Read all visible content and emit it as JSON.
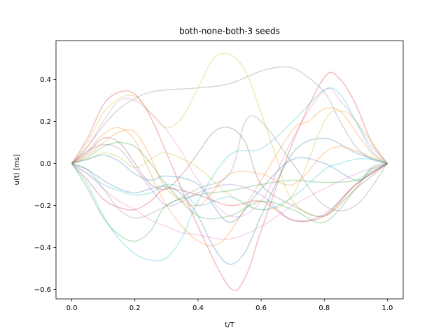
{
  "chart_data": {
    "type": "line",
    "title": "both-none-both-3 seeds",
    "xlabel": "t/T",
    "ylabel": "u(t) [ms]",
    "xlim": [
      -0.05,
      1.05
    ],
    "ylim": [
      -0.645,
      0.585
    ],
    "xticks": [
      0.0,
      0.2,
      0.4,
      0.6,
      0.8,
      1.0
    ],
    "xtick_labels": [
      "0.0",
      "0.2",
      "0.4",
      "0.6",
      "0.8",
      "1.0"
    ],
    "yticks": [
      -0.6,
      -0.4,
      -0.2,
      0.0,
      0.2,
      0.4
    ],
    "ytick_labels": [
      "−0.6",
      "−0.4",
      "−0.2",
      "0.0",
      "0.2",
      "0.4"
    ],
    "grid": false,
    "legend": "none",
    "line_opacity": 0.3,
    "series": [
      {
        "color": "#d62728",
        "x": [
          0,
          0.05,
          0.1,
          0.15,
          0.2,
          0.25,
          0.3,
          0.4,
          0.5,
          0.55,
          0.6,
          0.7,
          0.8,
          0.85,
          0.9,
          0.95,
          1.0
        ],
        "values": [
          0,
          0.12,
          0.28,
          0.34,
          0.33,
          0.22,
          0.05,
          -0.3,
          -0.59,
          -0.54,
          -0.32,
          0.1,
          0.41,
          0.4,
          0.28,
          0.1,
          0
        ]
      },
      {
        "color": "#bcbd22",
        "x": [
          0,
          0.05,
          0.1,
          0.15,
          0.2,
          0.25,
          0.3,
          0.35,
          0.4,
          0.45,
          0.5,
          0.55,
          0.6,
          0.65,
          0.7,
          0.8,
          0.9,
          1.0
        ],
        "values": [
          0,
          0.1,
          0.24,
          0.31,
          0.32,
          0.24,
          0.17,
          0.22,
          0.36,
          0.5,
          0.52,
          0.44,
          0.24,
          0.02,
          -0.18,
          -0.25,
          -0.1,
          0
        ]
      },
      {
        "color": "#7f7f7f",
        "x": [
          0,
          0.05,
          0.1,
          0.15,
          0.2,
          0.25,
          0.3,
          0.4,
          0.5,
          0.6,
          0.67,
          0.72,
          0.8,
          0.85,
          0.9,
          0.95,
          1.0
        ],
        "values": [
          0,
          0.08,
          0.18,
          0.26,
          0.31,
          0.34,
          0.35,
          0.36,
          0.38,
          0.44,
          0.46,
          0.44,
          0.34,
          0.2,
          0.08,
          0.02,
          0
        ]
      },
      {
        "color": "#e377c2",
        "x": [
          0,
          0.05,
          0.1,
          0.15,
          0.2,
          0.25,
          0.3,
          0.35,
          0.4,
          0.5,
          0.6,
          0.7,
          0.8,
          0.85,
          0.9,
          0.95,
          1.0
        ],
        "values": [
          0,
          0.08,
          0.2,
          0.3,
          0.3,
          0.24,
          0.16,
          0.05,
          -0.08,
          -0.25,
          -0.18,
          0.12,
          0.35,
          0.3,
          0.2,
          0.08,
          0
        ]
      },
      {
        "color": "#17becf",
        "x": [
          0,
          0.05,
          0.1,
          0.15,
          0.2,
          0.25,
          0.3,
          0.35,
          0.4,
          0.5,
          0.6,
          0.7,
          0.8,
          0.85,
          0.9,
          0.95,
          1.0
        ],
        "values": [
          0,
          -0.1,
          -0.25,
          -0.36,
          -0.43,
          -0.46,
          -0.45,
          -0.35,
          -0.18,
          0.04,
          0.07,
          0.2,
          0.35,
          0.33,
          0.2,
          0.06,
          0
        ]
      },
      {
        "color": "#ff7f0e",
        "x": [
          0,
          0.05,
          0.1,
          0.15,
          0.2,
          0.25,
          0.3,
          0.35,
          0.4,
          0.45,
          0.5,
          0.6,
          0.7,
          0.75,
          0.8,
          0.85,
          0.9,
          0.95,
          1.0
        ],
        "values": [
          0,
          0.06,
          0.14,
          0.17,
          0.11,
          -0.05,
          -0.2,
          -0.3,
          -0.37,
          -0.39,
          -0.33,
          -0.08,
          0.16,
          0.2,
          0.26,
          0.25,
          0.15,
          0.05,
          0
        ]
      },
      {
        "color": "#1f77b4",
        "x": [
          0,
          0.05,
          0.1,
          0.15,
          0.2,
          0.25,
          0.3,
          0.35,
          0.4,
          0.45,
          0.5,
          0.55,
          0.6,
          0.7,
          0.8,
          0.9,
          1.0
        ],
        "values": [
          0,
          -0.03,
          -0.08,
          -0.12,
          -0.14,
          -0.12,
          -0.11,
          -0.15,
          -0.25,
          -0.4,
          -0.48,
          -0.42,
          -0.25,
          0.05,
          0.12,
          0.05,
          0
        ]
      },
      {
        "color": "#2ca02c",
        "x": [
          0,
          0.05,
          0.1,
          0.15,
          0.2,
          0.25,
          0.3,
          0.4,
          0.5,
          0.6,
          0.7,
          0.8,
          0.9,
          0.95,
          1.0
        ],
        "values": [
          0,
          -0.12,
          -0.26,
          -0.34,
          -0.37,
          -0.32,
          -0.2,
          -0.15,
          -0.13,
          -0.1,
          -0.08,
          -0.09,
          -0.08,
          -0.03,
          0
        ]
      },
      {
        "color": "#9467bd",
        "x": [
          0,
          0.05,
          0.1,
          0.15,
          0.2,
          0.25,
          0.3,
          0.35,
          0.4,
          0.5,
          0.6,
          0.7,
          0.8,
          0.9,
          1.0
        ],
        "values": [
          0,
          0.06,
          0.09,
          0.07,
          -0.02,
          -0.12,
          -0.2,
          -0.18,
          -0.14,
          -0.1,
          -0.15,
          -0.27,
          -0.24,
          -0.1,
          0
        ]
      },
      {
        "color": "#8c564b",
        "x": [
          0,
          0.05,
          0.1,
          0.15,
          0.2,
          0.25,
          0.3,
          0.35,
          0.4,
          0.45,
          0.5,
          0.55,
          0.6,
          0.7,
          0.8,
          0.9,
          1.0
        ],
        "values": [
          0,
          0.05,
          0.12,
          0.1,
          0.0,
          -0.1,
          -0.12,
          -0.05,
          0.05,
          0.15,
          0.17,
          0.1,
          -0.1,
          -0.2,
          -0.25,
          -0.12,
          0
        ]
      },
      {
        "color": "#7f7f7f",
        "x": [
          0,
          0.05,
          0.1,
          0.15,
          0.2,
          0.25,
          0.3,
          0.4,
          0.5,
          0.55,
          0.6,
          0.7,
          0.8,
          0.9,
          1.0
        ],
        "values": [
          0,
          -0.03,
          -0.12,
          -0.22,
          -0.26,
          -0.24,
          -0.2,
          -0.12,
          -0.05,
          0.2,
          0.2,
          0.0,
          -0.2,
          -0.2,
          0
        ]
      },
      {
        "color": "#d62728",
        "x": [
          0,
          0.05,
          0.1,
          0.15,
          0.2,
          0.25,
          0.3,
          0.4,
          0.5,
          0.6,
          0.7,
          0.8,
          0.9,
          1.0
        ],
        "values": [
          0,
          -0.08,
          -0.17,
          -0.21,
          -0.22,
          -0.18,
          -0.12,
          -0.15,
          -0.2,
          -0.18,
          -0.27,
          -0.25,
          -0.1,
          0
        ]
      },
      {
        "color": "#bcbd22",
        "x": [
          0,
          0.05,
          0.1,
          0.15,
          0.2,
          0.25,
          0.3,
          0.4,
          0.5,
          0.6,
          0.7,
          0.8,
          0.85,
          0.9,
          1.0
        ],
        "values": [
          0,
          0.02,
          0.05,
          0.03,
          -0.02,
          0.02,
          0.05,
          -0.02,
          -0.15,
          -0.22,
          -0.15,
          0.2,
          0.25,
          0.2,
          0
        ]
      },
      {
        "color": "#ff7f0e",
        "x": [
          0,
          0.05,
          0.1,
          0.15,
          0.2,
          0.25,
          0.3,
          0.4,
          0.5,
          0.6,
          0.7,
          0.8,
          0.85,
          0.9,
          1.0
        ],
        "values": [
          0,
          0.04,
          0.1,
          0.15,
          0.15,
          0.03,
          -0.12,
          -0.2,
          -0.05,
          -0.05,
          -0.1,
          0.05,
          0.08,
          0.06,
          0
        ]
      },
      {
        "color": "#17becf",
        "x": [
          0,
          0.05,
          0.1,
          0.15,
          0.2,
          0.25,
          0.3,
          0.35,
          0.4,
          0.5,
          0.6,
          0.7,
          0.8,
          0.85,
          0.9,
          0.95,
          1.0
        ],
        "values": [
          0,
          -0.05,
          -0.1,
          -0.13,
          -0.15,
          -0.14,
          -0.1,
          -0.12,
          -0.2,
          -0.16,
          -0.22,
          -0.16,
          -0.03,
          0.0,
          0.02,
          0.02,
          0
        ]
      },
      {
        "color": "#e377c2",
        "x": [
          0,
          0.05,
          0.1,
          0.15,
          0.2,
          0.25,
          0.3,
          0.35,
          0.4,
          0.5,
          0.6,
          0.7,
          0.8,
          0.9,
          1.0
        ],
        "values": [
          0,
          -0.05,
          -0.12,
          -0.18,
          -0.22,
          -0.27,
          -0.3,
          -0.33,
          -0.34,
          -0.36,
          -0.3,
          -0.2,
          -0.12,
          -0.05,
          0
        ]
      },
      {
        "color": "#2ca02c",
        "x": [
          0,
          0.05,
          0.1,
          0.15,
          0.2,
          0.25,
          0.3,
          0.4,
          0.5,
          0.6,
          0.7,
          0.8,
          0.9,
          0.95,
          1.0
        ],
        "values": [
          0,
          0.03,
          0.08,
          0.1,
          0.08,
          0.0,
          -0.1,
          -0.25,
          -0.25,
          -0.18,
          -0.22,
          -0.28,
          -0.12,
          -0.02,
          0
        ]
      },
      {
        "color": "#1f77b4",
        "x": [
          0,
          0.05,
          0.1,
          0.15,
          0.2,
          0.25,
          0.3,
          0.4,
          0.5,
          0.6,
          0.7,
          0.8,
          0.9,
          0.95,
          1.0
        ],
        "values": [
          0,
          0.02,
          0.04,
          0.01,
          -0.05,
          -0.08,
          -0.06,
          -0.1,
          -0.28,
          -0.12,
          0.02,
          0.0,
          -0.08,
          -0.04,
          0
        ]
      }
    ]
  }
}
